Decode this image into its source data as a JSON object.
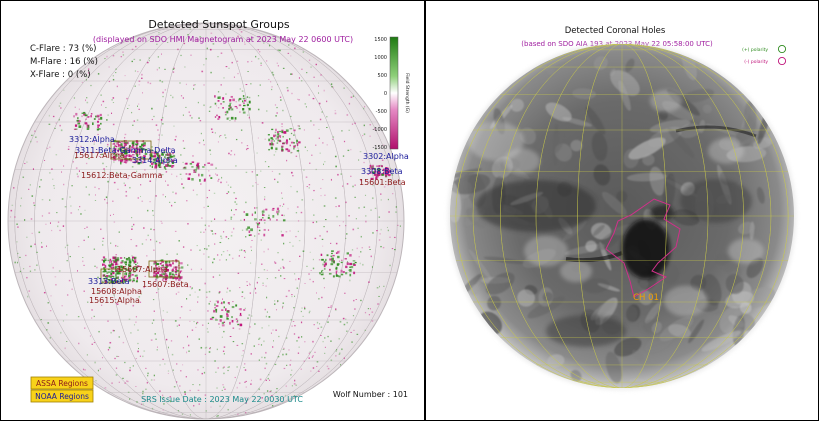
{
  "sunspot_panel": {
    "title": "Detected Sunspot Groups",
    "subtitle": "(displayed on SDO HMI Magnetogram at 2023 May 22 0600 UTC)",
    "flare_probabilities": [
      {
        "label": "C-Flare : 73 (%)"
      },
      {
        "label": "M-Flare : 16 (%)"
      },
      {
        "label": "X-Flare :  0 (%)"
      }
    ],
    "colorbar": {
      "axis_label": "Field Strength (G)",
      "ticks": [
        "1500",
        "1000",
        "500",
        "0",
        "-500",
        "-1000",
        "-1500"
      ],
      "colors": {
        "positive": "#2e8b1e",
        "negative": "#c0127a"
      }
    },
    "groups": [
      {
        "label": "3312:Alpha",
        "color": "#1a1a9a"
      },
      {
        "label": "3311:Beta-Gamma-Delta",
        "color": "#1a1a9a"
      },
      {
        "label": "15617:Alpha",
        "color": "#8b1a1a"
      },
      {
        "label": "3314:Alpha",
        "color": "#1a1a9a"
      },
      {
        "label": "15612:Beta-Gamma",
        "color": "#8b1a1a"
      },
      {
        "label": "3302:Alpha",
        "color": "#1a1a9a"
      },
      {
        "label": "3308:Beta",
        "color": "#1a1a9a"
      },
      {
        "label": "15601:Beta",
        "color": "#8b1a1a"
      },
      {
        "label": "15607:Alpha",
        "color": "#8b1a1a"
      },
      {
        "label": "15607:Beta",
        "color": "#8b1a1a"
      },
      {
        "label": "3313:Beta",
        "color": "#1a1a9a"
      },
      {
        "label": "15608:Alpha",
        "color": "#8b1a1a"
      },
      {
        "label": "15615:Alpha",
        "color": "#8b1a1a"
      }
    ],
    "legend": {
      "assa": "ASSA Regions",
      "noaa": "NOAA Regions"
    },
    "issue_date": "SRS Issue Date : 2023 May 22 0030 UTC",
    "wolf_number": "Wolf Number : 101"
  },
  "coronal_panel": {
    "title": "Detected Coronal Holes",
    "subtitle": "(based on SDO AIA 193 at 2023 May 22 05:58:00 UTC)",
    "legend": [
      {
        "label": "(+) polarity",
        "color": "#2e8b1e"
      },
      {
        "label": "(-) polarity",
        "color": "#c0127a"
      }
    ],
    "holes": [
      {
        "label": "CH 01",
        "color": "#f0a000",
        "outline": "#d0308a"
      }
    ]
  }
}
